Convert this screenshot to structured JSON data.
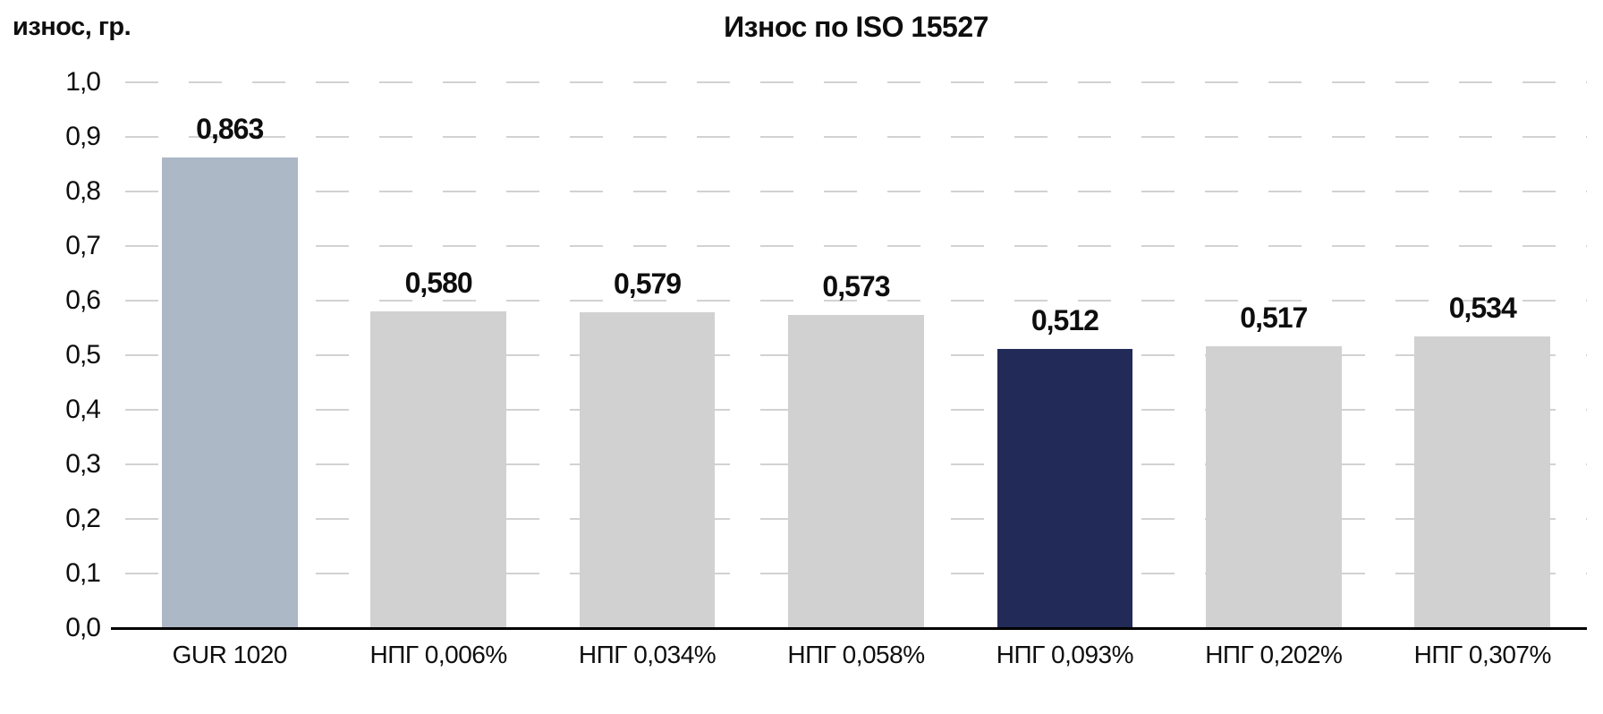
{
  "chart_data": {
    "type": "bar",
    "title": "Износ по ISO 15527",
    "ylabel": "износ, гр.",
    "xlabel": "",
    "ylim": [
      0.0,
      1.0
    ],
    "y_tick_step": 0.1,
    "y_ticks": [
      "1,0",
      "0,9",
      "0,8",
      "0,7",
      "0,6",
      "0,5",
      "0,4",
      "0,3",
      "0,2",
      "0,1",
      "0,0"
    ],
    "grid": "horizontal-dashed",
    "legend": "none",
    "categories": [
      "GUR 1020",
      "НПГ 0,006%",
      "НПГ 0,034%",
      "НПГ 0,058%",
      "НПГ 0,093%",
      "НПГ 0,202%",
      "НПГ 0,307%"
    ],
    "values": [
      0.863,
      0.58,
      0.579,
      0.573,
      0.512,
      0.517,
      0.534
    ],
    "value_labels": [
      "0,863",
      "0,580",
      "0,579",
      "0,573",
      "0,512",
      "0,517",
      "0,534"
    ],
    "bar_colors": [
      "#adb8c7",
      "#d1d1d1",
      "#d1d1d1",
      "#d1d1d1",
      "#222b58",
      "#d1d1d1",
      "#d1d1d1"
    ],
    "colors": {
      "baseline_bar": "#adb8c7",
      "default_bar": "#d1d1d1",
      "highlight_bar": "#222b58",
      "gridline": "#d2d2d2",
      "axis": "#000000",
      "text": "#0e0e0e",
      "background": "#ffffff"
    }
  }
}
